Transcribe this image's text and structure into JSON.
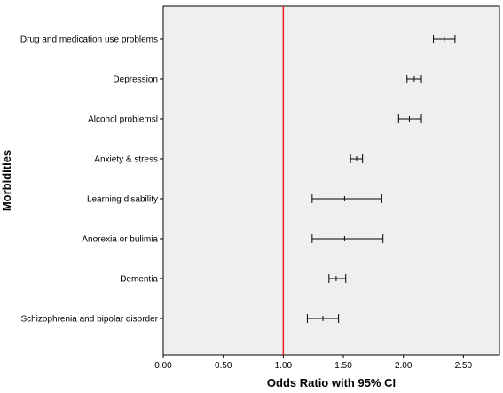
{
  "chart_data": {
    "type": "forest",
    "xlabel": "Odds Ratio with 95% CI",
    "ylabel": "Morbidities",
    "xlim": [
      0,
      2.8
    ],
    "xticks": [
      "0.00",
      "0.50",
      "1.00",
      "1.50",
      "2.00",
      "2.50"
    ],
    "xtick_values": [
      0,
      0.5,
      1.0,
      1.5,
      2.0,
      2.5
    ],
    "reference_line": {
      "x": 1.0,
      "color": "#e8202a"
    },
    "plot_background": "#efefef",
    "grid": false,
    "categories": [
      "Drug and medication use problems",
      "Depression",
      "Alcohol problemsl",
      "Anxiety & stress",
      "Learning disability",
      "Anorexia or bulimia",
      "Dementia",
      "Schizophrenia and bipolar disorder"
    ],
    "series": [
      {
        "estimate": [
          2.34,
          2.09,
          2.05,
          1.61,
          1.51,
          1.51,
          1.44,
          1.33
        ],
        "lower": [
          2.25,
          2.03,
          1.96,
          1.56,
          1.24,
          1.24,
          1.38,
          1.2
        ],
        "upper": [
          2.43,
          2.15,
          2.15,
          1.66,
          1.82,
          1.83,
          1.52,
          1.46
        ]
      }
    ]
  }
}
